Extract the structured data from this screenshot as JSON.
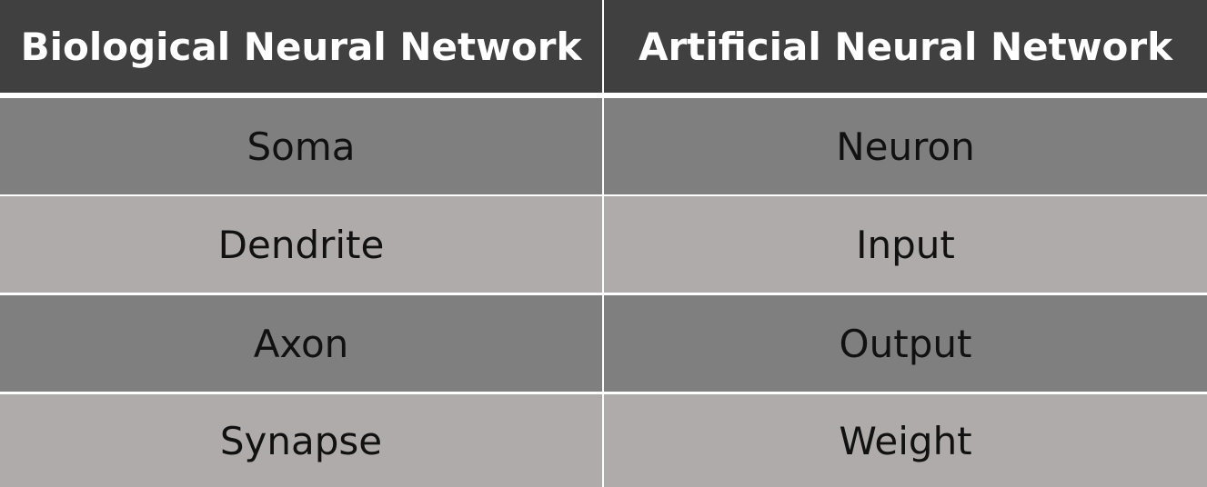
{
  "table": {
    "headers": [
      "Biological Neural Network",
      "Artificial Neural Network"
    ],
    "rows": [
      [
        "Soma",
        "Neuron"
      ],
      [
        "Dendrite",
        "Input"
      ],
      [
        "Axon",
        "Output"
      ],
      [
        "Synapse",
        "Weight"
      ]
    ],
    "colors": {
      "header_bg": "#404040",
      "row_dark_bg": "#7f7f7f",
      "row_light_bg": "#afabab",
      "grid_lines": "#ffffff"
    }
  }
}
